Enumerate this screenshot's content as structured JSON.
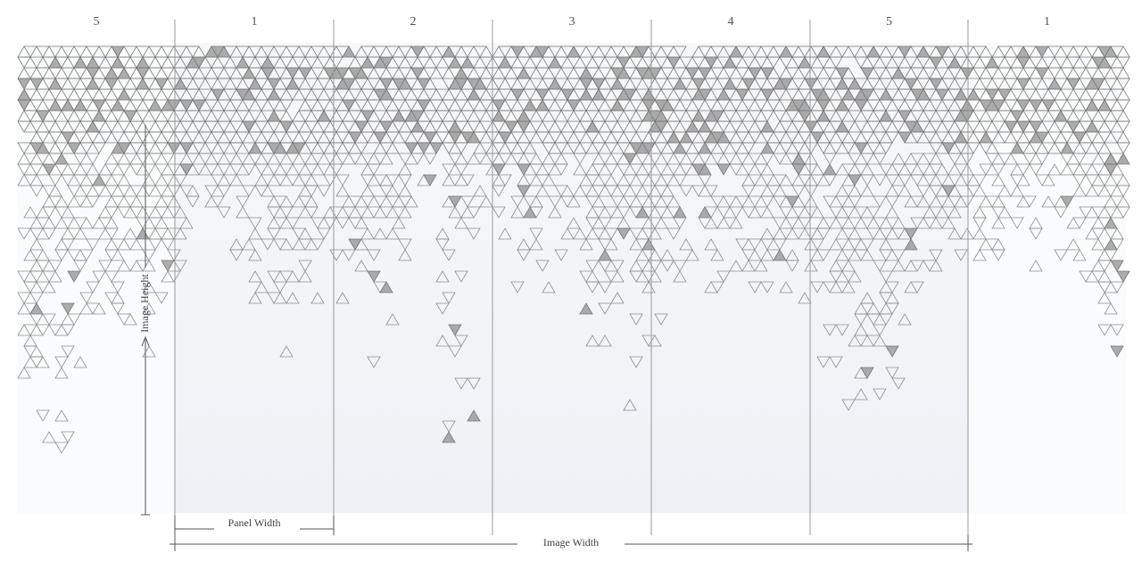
{
  "panels": {
    "labels": [
      "5",
      "1",
      "2",
      "3",
      "4",
      "5",
      "1"
    ]
  },
  "dimensions": {
    "image_height": "Image Height",
    "panel_width": "Panel Width",
    "image_width": "Image Width"
  }
}
